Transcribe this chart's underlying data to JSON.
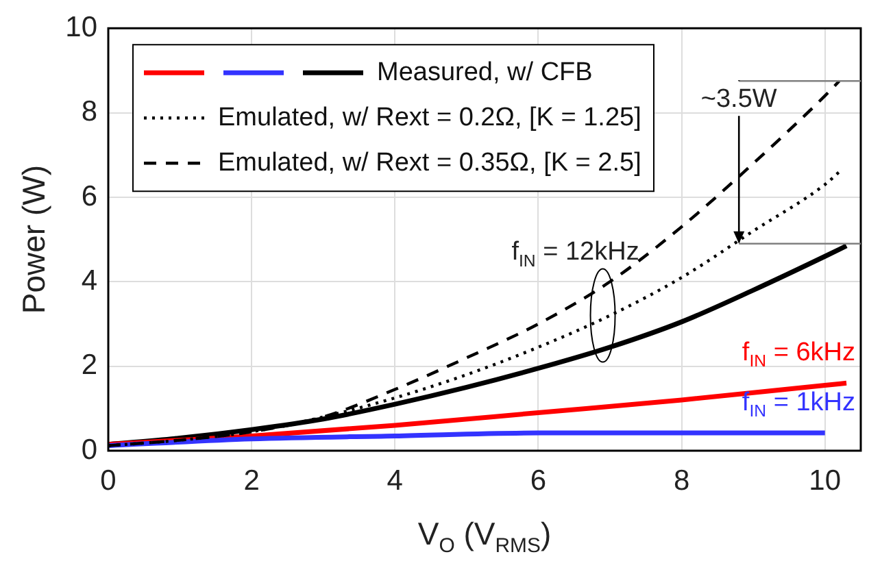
{
  "chart_data": {
    "type": "line",
    "xlabel": "V$_{O}$ (V$_{RMS}$)",
    "ylabel": "Power (W)",
    "xlim": [
      0,
      10.5
    ],
    "xticks": [
      0,
      2,
      4,
      6,
      8,
      10
    ],
    "ylim": [
      0,
      10
    ],
    "yticks": [
      0,
      2,
      4,
      6,
      8,
      10
    ],
    "grid": true,
    "legend": "top left",
    "marker": "none",
    "series": [
      {
        "name": "Measured, w/ CFB",
        "color": "#000000",
        "line_style": "solid",
        "x": [
          0,
          1,
          2,
          3,
          4,
          5,
          6,
          7,
          8,
          9,
          10,
          10.3
        ],
        "values": [
          0.15,
          0.3,
          0.5,
          0.75,
          1.1,
          1.5,
          1.95,
          2.45,
          3.05,
          3.8,
          4.6,
          4.85
        ]
      },
      {
        "name": "f$_{IN}$ = 6kHz",
        "color": "#ff0000",
        "line_style": "solid",
        "x": [
          0,
          2,
          4,
          6,
          8,
          10,
          10.3
        ],
        "values": [
          0.15,
          0.35,
          0.6,
          0.9,
          1.2,
          1.55,
          1.6
        ]
      },
      {
        "name": "f$_{IN}$ = 1kHz",
        "color": "#3333ff",
        "line_style": "solid",
        "x": [
          0,
          2,
          4,
          6,
          8,
          10
        ],
        "values": [
          0.12,
          0.28,
          0.35,
          0.42,
          0.42,
          0.42
        ]
      },
      {
        "name": "Emulated, w/ Rext = 0.2Ω, [K = 1.25]",
        "color": "#000000",
        "line_style": "dotted",
        "x": [
          0,
          1,
          2,
          3,
          4,
          5,
          6,
          7,
          8,
          9,
          10,
          10.2
        ],
        "values": [
          0.12,
          0.25,
          0.45,
          0.8,
          1.25,
          1.8,
          2.45,
          3.2,
          4.1,
          5.2,
          6.3,
          6.6
        ]
      },
      {
        "name": "Emulated, w/ Rext = 0.35Ω, [K = 2.5]",
        "color": "#000000",
        "line_style": "dashed",
        "x": [
          0,
          1,
          2,
          3,
          4,
          5,
          6,
          7,
          8,
          9,
          10,
          10.2
        ],
        "values": [
          0.12,
          0.25,
          0.45,
          0.8,
          1.45,
          2.2,
          3.0,
          4.0,
          5.3,
          6.8,
          8.4,
          8.75
        ]
      }
    ],
    "ref_lines": [
      {
        "axis": "y",
        "value": 8.75,
        "color": "#808080"
      },
      {
        "axis": "y",
        "value": 4.9,
        "color": "#808080"
      }
    ],
    "annotations": [
      {
        "text": "~3.5W",
        "x": 8.8,
        "y": 4.9
      },
      {
        "text": "f$_{IN}$ = 12kHz",
        "x": 6.9,
        "y": 3.2
      }
    ]
  }
}
